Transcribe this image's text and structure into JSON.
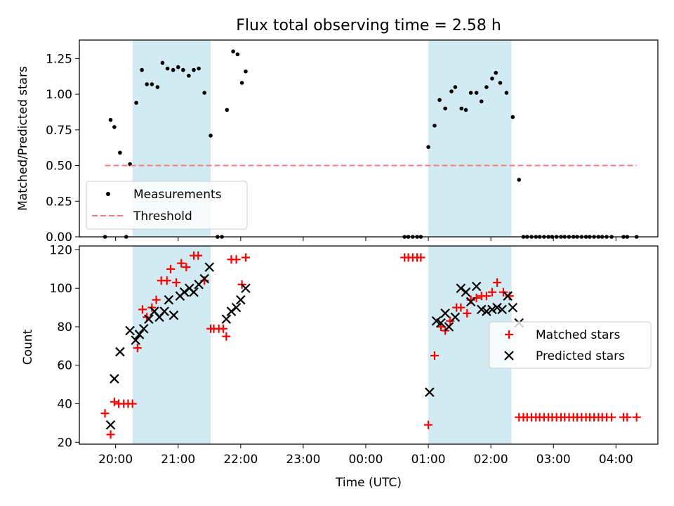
{
  "figure": {
    "title": "Flux total observing time = 2.58 h",
    "xlabel": "Time (UTC)"
  },
  "colors": {
    "shade": "#add8e6",
    "threshold": "#f08080",
    "matched": "#ff0000",
    "predicted": "#000000",
    "points": "#000000"
  },
  "chart_data": [
    {
      "type": "scatter",
      "ylabel": "Matched/Predicted stars",
      "xlim": [
        19.42,
        28.67
      ],
      "ylim": [
        0,
        1.38
      ],
      "x_units": "hours after 00:00 of first day (x ticks shown as HH:MM)",
      "xticks": [
        20,
        21,
        22,
        23,
        24,
        25,
        26,
        27,
        28
      ],
      "xtick_labels": [
        "20:00",
        "21:00",
        "22:00",
        "23:00",
        "00:00",
        "01:00",
        "02:00",
        "03:00",
        "04:00"
      ],
      "yticks": [
        0,
        0.25,
        0.5,
        0.75,
        1.0,
        1.25
      ],
      "ytick_labels": [
        "0.00",
        "0.25",
        "0.50",
        "0.75",
        "1.00",
        "1.25"
      ],
      "shaded_intervals": [
        [
          20.27,
          21.52
        ],
        [
          25.0,
          26.33
        ]
      ],
      "legend": {
        "position": "lower-left",
        "entries": [
          "Measurements",
          "Threshold"
        ]
      },
      "series": [
        {
          "name": "Measurements",
          "kind": "points",
          "x": [
            19.83,
            19.92,
            19.98,
            20.07,
            20.17,
            20.23,
            20.33,
            20.42,
            20.5,
            20.58,
            20.67,
            20.75,
            20.83,
            20.92,
            21.0,
            21.08,
            21.17,
            21.25,
            21.33,
            21.42,
            21.52,
            21.63,
            21.7,
            21.78,
            21.88,
            21.95,
            22.02,
            22.08,
            24.62,
            24.68,
            24.75,
            24.82,
            24.88,
            25.0,
            25.1,
            25.18,
            25.27,
            25.37,
            25.43,
            25.53,
            25.6,
            25.68,
            25.77,
            25.85,
            25.93,
            26.02,
            26.08,
            26.15,
            26.25,
            26.35,
            26.45,
            26.52,
            26.58,
            26.65,
            26.72,
            26.78,
            26.85,
            26.92,
            26.98,
            27.05,
            27.12,
            27.18,
            27.25,
            27.32,
            27.38,
            27.45,
            27.52,
            27.58,
            27.65,
            27.72,
            27.78,
            27.85,
            27.93,
            28.12,
            28.18,
            28.33
          ],
          "y": [
            0.0,
            0.82,
            0.77,
            0.59,
            0.0,
            0.51,
            0.94,
            1.17,
            1.07,
            1.07,
            1.05,
            1.22,
            1.18,
            1.17,
            1.19,
            1.17,
            1.13,
            1.17,
            1.18,
            1.01,
            0.71,
            0.0,
            0.0,
            0.89,
            1.3,
            1.28,
            1.08,
            1.16,
            0.0,
            0.0,
            0.0,
            0.0,
            0.0,
            0.63,
            0.78,
            0.96,
            0.9,
            1.02,
            1.05,
            0.9,
            0.89,
            1.01,
            1.01,
            0.95,
            1.05,
            1.11,
            1.15,
            1.08,
            1.01,
            0.84,
            0.4,
            0.0,
            0.0,
            0.0,
            0.0,
            0.0,
            0.0,
            0.0,
            0.0,
            0.0,
            0.0,
            0.0,
            0.0,
            0.0,
            0.0,
            0.0,
            0.0,
            0.0,
            0.0,
            0.0,
            0.0,
            0.0,
            0.0,
            0.0,
            0.0,
            0.0
          ]
        },
        {
          "name": "Threshold",
          "kind": "dashed-line",
          "x": [
            19.83,
            28.33
          ],
          "y": [
            0.5,
            0.5
          ]
        }
      ]
    },
    {
      "type": "scatter",
      "ylabel": "Count",
      "xlabel": "Time (UTC)",
      "xlim": [
        19.42,
        28.67
      ],
      "ylim": [
        19,
        122
      ],
      "xticks": [
        20,
        21,
        22,
        23,
        24,
        25,
        26,
        27,
        28
      ],
      "xtick_labels": [
        "20:00",
        "21:00",
        "22:00",
        "23:00",
        "00:00",
        "01:00",
        "02:00",
        "03:00",
        "04:00"
      ],
      "yticks": [
        20,
        40,
        60,
        80,
        100,
        120
      ],
      "ytick_labels": [
        "20",
        "40",
        "60",
        "80",
        "100",
        "120"
      ],
      "shaded_intervals": [
        [
          20.27,
          21.52
        ],
        [
          25.0,
          26.33
        ]
      ],
      "legend": {
        "position": "center-right",
        "entries": [
          "Matched stars",
          "Predicted stars"
        ]
      },
      "series": [
        {
          "name": "Matched stars",
          "kind": "plus",
          "x": [
            19.83,
            19.92,
            19.98,
            20.05,
            20.13,
            20.2,
            20.27,
            20.35,
            20.43,
            20.5,
            20.58,
            20.65,
            20.73,
            20.82,
            20.88,
            20.97,
            21.05,
            21.13,
            21.25,
            21.32,
            21.42,
            21.52,
            21.57,
            21.65,
            21.72,
            21.77,
            21.85,
            21.93,
            22.02,
            22.08,
            24.62,
            24.68,
            24.75,
            24.82,
            24.88,
            25.0,
            25.1,
            25.2,
            25.27,
            25.35,
            25.45,
            25.52,
            25.62,
            25.68,
            25.77,
            25.85,
            25.93,
            26.02,
            26.1,
            26.2,
            26.3,
            26.45,
            26.52,
            26.58,
            26.65,
            26.72,
            26.78,
            26.85,
            26.92,
            26.98,
            27.05,
            27.12,
            27.18,
            27.25,
            27.32,
            27.38,
            27.45,
            27.52,
            27.58,
            27.65,
            27.72,
            27.78,
            27.85,
            27.93,
            28.12,
            28.18,
            28.33
          ],
          "y": [
            35,
            24,
            41,
            40,
            40,
            40,
            40,
            69,
            89,
            85,
            90,
            94,
            104,
            104,
            110,
            103,
            113,
            111,
            117,
            117,
            104,
            79,
            79,
            79,
            79,
            75,
            115,
            115,
            102,
            116,
            116,
            116,
            116,
            116,
            116,
            29,
            65,
            80,
            78,
            83,
            90,
            90,
            87,
            94,
            95,
            96,
            96,
            98,
            103,
            98,
            96,
            33,
            33,
            33,
            33,
            33,
            33,
            33,
            33,
            33,
            33,
            33,
            33,
            33,
            33,
            33,
            33,
            33,
            33,
            33,
            33,
            33,
            33,
            33,
            33,
            33,
            33
          ]
        },
        {
          "name": "Predicted stars",
          "kind": "x",
          "x": [
            19.92,
            19.98,
            20.07,
            20.23,
            20.32,
            20.38,
            20.45,
            20.53,
            20.62,
            20.7,
            20.78,
            20.85,
            20.93,
            21.03,
            21.1,
            21.18,
            21.25,
            21.33,
            21.42,
            21.5,
            21.77,
            21.85,
            21.93,
            22.0,
            22.08,
            25.02,
            25.13,
            25.2,
            25.27,
            25.33,
            25.43,
            25.52,
            25.6,
            25.68,
            25.77,
            25.85,
            25.93,
            26.02,
            26.1,
            26.18,
            26.27,
            26.35,
            26.45
          ],
          "y": [
            29,
            53,
            67,
            78,
            73,
            76,
            79,
            84,
            88,
            85,
            88,
            94,
            86,
            96,
            98,
            100,
            98,
            102,
            105,
            111,
            84,
            88,
            90,
            94,
            100,
            46,
            83,
            82,
            87,
            80,
            85,
            100,
            98,
            93,
            101,
            89,
            88,
            89,
            90,
            89,
            96,
            90,
            82
          ]
        }
      ]
    }
  ]
}
